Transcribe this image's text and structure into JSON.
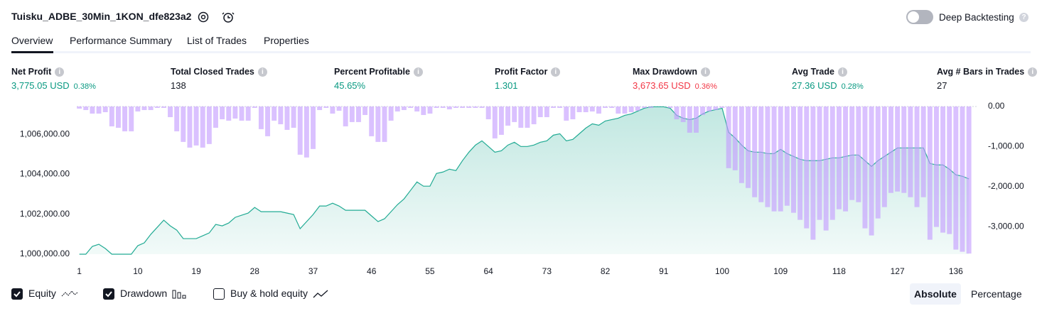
{
  "header": {
    "title": "Tuisku_ADBE_30Min_1KON_dfe823a2",
    "deep_backtesting": "Deep Backtesting"
  },
  "tabs": [
    "Overview",
    "Performance Summary",
    "List of Trades",
    "Properties"
  ],
  "metrics": [
    {
      "label": "Net Profit",
      "value": "3,775.05 USD",
      "percent": "0.38%",
      "tone": "positive"
    },
    {
      "label": "Total Closed Trades",
      "value": "138"
    },
    {
      "label": "Percent Profitable",
      "value": "45.65%",
      "tone": "positive"
    },
    {
      "label": "Profit Factor",
      "value": "1.301",
      "tone": "positive"
    },
    {
      "label": "Max Drawdown",
      "value": "3,673.65 USD",
      "percent": "0.36%",
      "tone": "negative"
    },
    {
      "label": "Avg Trade",
      "value": "27.36 USD",
      "percent": "0.28%",
      "tone": "positive"
    },
    {
      "label": "Avg # Bars in Trades",
      "value": "27"
    }
  ],
  "chart_data": {
    "type": "line",
    "x": [
      1,
      2,
      3,
      4,
      5,
      6,
      7,
      8,
      9,
      10,
      11,
      12,
      13,
      14,
      15,
      16,
      17,
      18,
      19,
      20,
      21,
      22,
      23,
      24,
      25,
      26,
      27,
      28,
      29,
      30,
      31,
      32,
      33,
      34,
      35,
      36,
      37,
      38,
      39,
      40,
      41,
      42,
      43,
      44,
      45,
      46,
      47,
      48,
      49,
      50,
      51,
      52,
      53,
      54,
      55,
      56,
      57,
      58,
      59,
      60,
      61,
      62,
      63,
      64,
      65,
      66,
      67,
      68,
      69,
      70,
      71,
      72,
      73,
      74,
      75,
      76,
      77,
      78,
      79,
      80,
      81,
      82,
      83,
      84,
      85,
      86,
      87,
      88,
      89,
      90,
      91,
      92,
      93,
      94,
      95,
      96,
      97,
      98,
      99,
      100,
      101,
      102,
      103,
      104,
      105,
      106,
      107,
      108,
      109,
      110,
      111,
      112,
      113,
      114,
      115,
      116,
      117,
      118,
      119,
      120,
      121,
      122,
      123,
      124,
      125,
      126,
      127,
      128,
      129,
      130,
      131,
      132,
      133,
      134,
      135,
      136,
      137,
      138
    ],
    "xlim": [
      0.6,
      139.3
    ],
    "xticks": [
      1,
      10,
      19,
      28,
      37,
      46,
      55,
      64,
      73,
      82,
      91,
      100,
      109,
      118,
      127,
      136
    ],
    "ylim": [
      1000000,
      1007400
    ],
    "yticks": [
      {
        "value": 1000000,
        "label": "1,000,000.00"
      },
      {
        "value": 1002000,
        "label": "1,002,000.00"
      },
      {
        "value": 1004000,
        "label": "1,004,000.00"
      },
      {
        "value": 1006000,
        "label": "1,006,000.00"
      }
    ],
    "y2lim": [
      -3690,
      0
    ],
    "y2ticks": [
      {
        "value": 0,
        "label": "0.00"
      },
      {
        "value": -1000,
        "label": "-1,000.00"
      },
      {
        "value": -2000,
        "label": "-2,000.00"
      },
      {
        "value": -3000,
        "label": "-3,000.00"
      }
    ],
    "series": [
      {
        "name": "Equity",
        "type": "area",
        "color": "#22ab94",
        "values": [
          1000000,
          1000000,
          1000390,
          1000497,
          1000284,
          1000000,
          1000000,
          1000000,
          1000000,
          1000426,
          1000568,
          1000994,
          1001349,
          1001704,
          1001420,
          1001207,
          1000781,
          1000781,
          1000781,
          1000923,
          1001065,
          1001491,
          1001420,
          1001562,
          1001846,
          1001953,
          1002059,
          1002343,
          1002130,
          1002130,
          1002130,
          1002130,
          1002059,
          1001988,
          1001278,
          1001633,
          1001988,
          1002414,
          1002414,
          1002556,
          1002414,
          1002201,
          1002201,
          1002201,
          1002201,
          1001917,
          1001633,
          1001775,
          1002130,
          1002485,
          1002769,
          1003195,
          1003621,
          1003408,
          1003408,
          1004047,
          1004118,
          1004260,
          1004189,
          1004686,
          1005112,
          1005467,
          1005680,
          1005396,
          1005112,
          1005183,
          1005467,
          1005609,
          1005396,
          1005396,
          1005467,
          1005609,
          1005680,
          1005964,
          1006035,
          1005680,
          1005751,
          1006035,
          1006319,
          1006532,
          1006461,
          1006674,
          1006745,
          1006816,
          1006958,
          1007029,
          1007171,
          1007313,
          1007384,
          1007384,
          1007384,
          1007313,
          1006958,
          1006816,
          1006745,
          1006816,
          1007029,
          1007171,
          1007242,
          1007313,
          1006106,
          1005822,
          1005467,
          1005183,
          1005112,
          1005112,
          1005041,
          1005041,
          1005254,
          1005041,
          1004899,
          1004757,
          1004686,
          1004686,
          1004686,
          1004757,
          1004828,
          1004828,
          1004899,
          1004970,
          1004970,
          1004686,
          1004402,
          1004686,
          1004899,
          1005112,
          1005325,
          1005325,
          1005325,
          1005325,
          1005325,
          1004544,
          1004473,
          1004473,
          1004260,
          1003976,
          1003905,
          1003775
        ]
      },
      {
        "name": "Drawdown",
        "type": "bar",
        "axis": "y2",
        "color": "#c49bff",
        "values": [
          -53,
          -89,
          -177,
          -177,
          -142,
          -496,
          -531,
          -620,
          -620,
          -124,
          -89,
          -89,
          -35,
          -35,
          -266,
          -620,
          -885,
          -1027,
          -974,
          -1027,
          -938,
          -531,
          -319,
          -354,
          -301,
          -354,
          -354,
          -35,
          -566,
          -743,
          -354,
          -443,
          -584,
          -531,
          -1204,
          -1274,
          -1062,
          -89,
          -35,
          -177,
          -106,
          -496,
          -389,
          -389,
          -212,
          -743,
          -885,
          -885,
          -354,
          -124,
          -89,
          -35,
          -124,
          -212,
          -177,
          -35,
          -35,
          -71,
          -35,
          -35,
          -35,
          -35,
          -35,
          -319,
          -797,
          -708,
          -478,
          -389,
          -531,
          -531,
          -443,
          -266,
          -266,
          -35,
          -35,
          -354,
          -319,
          -142,
          -142,
          -124,
          -177,
          -35,
          -35,
          -177,
          -177,
          -142,
          -106,
          -35,
          -35,
          0,
          0,
          -35,
          -319,
          -389,
          -655,
          -655,
          -212,
          -124,
          -89,
          -35,
          -1540,
          -1593,
          -1912,
          -2036,
          -2266,
          -2390,
          -2513,
          -2620,
          -2620,
          -2478,
          -2655,
          -2832,
          -3044,
          -3328,
          -2832,
          -3098,
          -2832,
          -2567,
          -2620,
          -2336,
          -2390,
          -3044,
          -3221,
          -2797,
          -2513,
          -2159,
          -2124,
          -2159,
          -2266,
          -2513,
          -2266,
          -3328,
          -3009,
          -3151,
          -3186,
          -3575,
          -3629,
          -3674
        ]
      }
    ]
  },
  "footer": {
    "buy_hold": "Buy & hold equity",
    "modes": [
      "Absolute",
      "Percentage"
    ]
  }
}
